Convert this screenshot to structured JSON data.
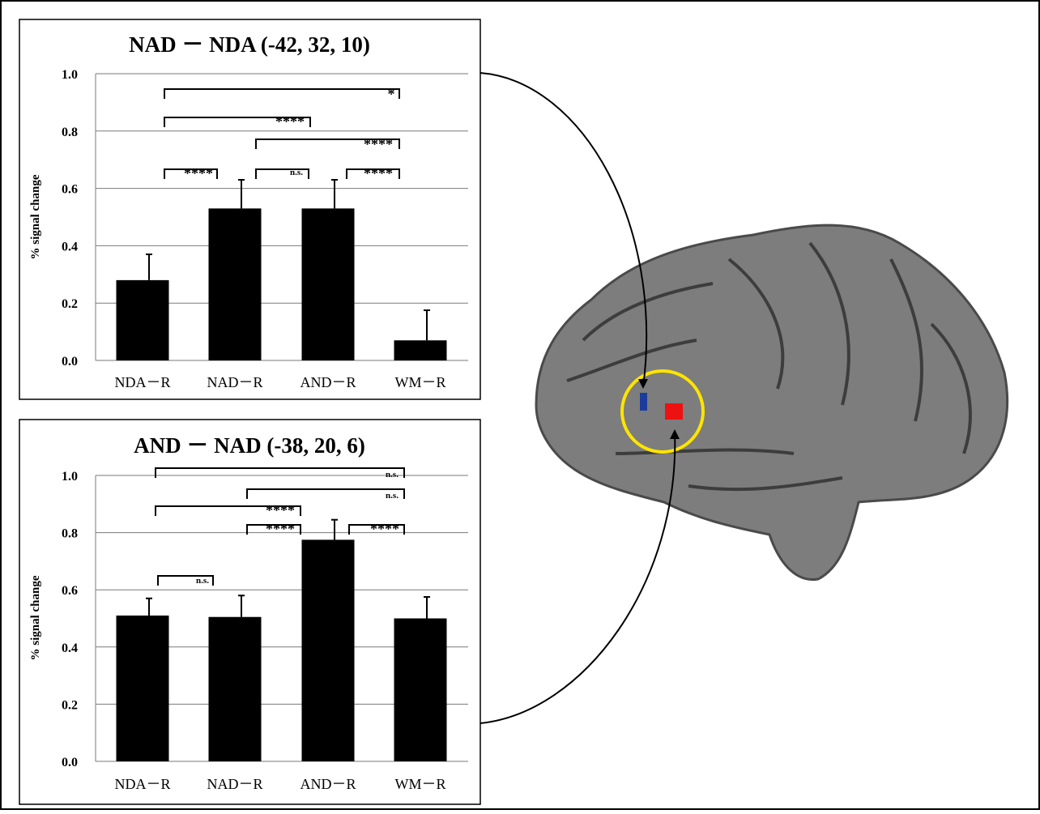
{
  "chart_data": [
    {
      "type": "bar",
      "title": "NAD － NDA (-42, 32, 10)",
      "y_label": "% signal change",
      "categories": [
        "NDA－R",
        "NAD－R",
        "AND－R",
        "WM－R"
      ],
      "values": [
        0.28,
        0.53,
        0.53,
        0.07
      ],
      "errors": [
        0.09,
        0.1,
        0.1,
        0.105
      ],
      "color": "#000000",
      "ylim": [
        0,
        1
      ],
      "yticks": [
        {
          "value": 0,
          "label": "0.0"
        },
        {
          "value": 0.2,
          "label": "0.2"
        },
        {
          "value": 0.4,
          "label": "0.4"
        },
        {
          "value": 0.6,
          "label": "0.6"
        },
        {
          "value": 0.8,
          "label": "0.8"
        },
        {
          "value": 1,
          "label": "1.0"
        }
      ],
      "grid": true,
      "annotations": [
        "*",
        "****",
        "****",
        "****",
        "n.s.",
        "****"
      ]
    },
    {
      "type": "bar",
      "title": "AND － NAD (-38, 20, 6)",
      "y_label": "% signal change",
      "categories": [
        "NDA－R",
        "NAD－R",
        "AND－R",
        "WM－R"
      ],
      "values": [
        0.51,
        0.505,
        0.775,
        0.5
      ],
      "errors": [
        0.06,
        0.075,
        0.07,
        0.075
      ],
      "color": "#000000",
      "ylim": [
        0,
        1
      ],
      "yticks": [
        {
          "value": 0,
          "label": "0.0"
        },
        {
          "value": 0.2,
          "label": "0.2"
        },
        {
          "value": 0.4,
          "label": "0.4"
        },
        {
          "value": 0.6,
          "label": "0.6"
        },
        {
          "value": 0.8,
          "label": "0.8"
        },
        {
          "value": 1,
          "label": "1.0"
        }
      ],
      "grid": true,
      "annotations": [
        "n.s.",
        "n.s.",
        "****",
        "****",
        "****",
        "n.s."
      ]
    }
  ]
}
